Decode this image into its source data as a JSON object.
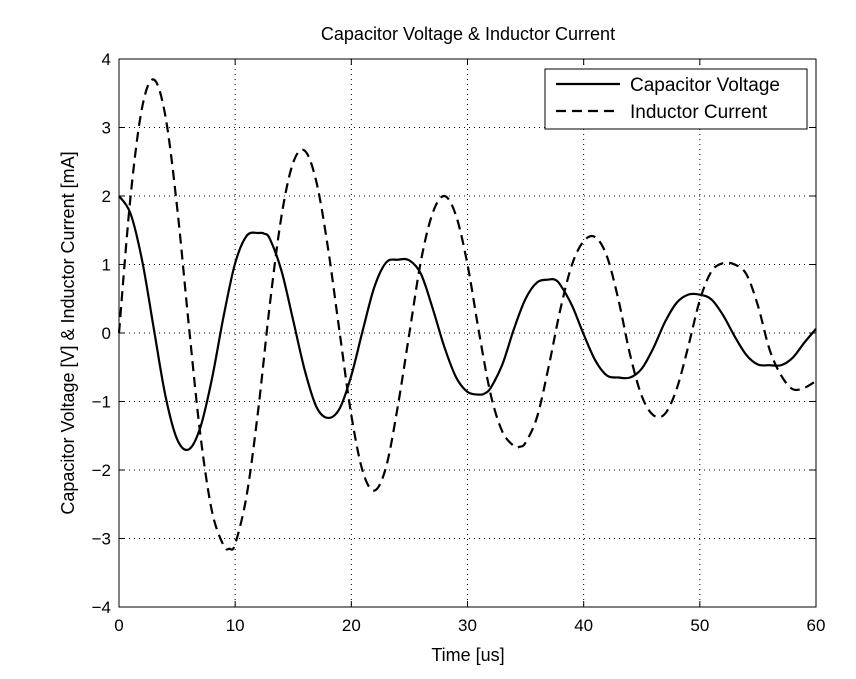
{
  "chart_data": {
    "type": "line",
    "title": "Capacitor Voltage & Inductor Current",
    "xlabel": "Time  [us]",
    "ylabel": "Capacitor Voltage  [V]  &  Inductor Current  [mA]",
    "xlim": [
      0,
      60
    ],
    "ylim": [
      -4,
      4
    ],
    "xticks": [
      0,
      10,
      20,
      30,
      40,
      50,
      60
    ],
    "yticks": [
      -4,
      -3,
      -2,
      -1,
      0,
      1,
      2,
      3,
      4
    ],
    "xtick_labels": [
      "0",
      "10",
      "20",
      "30",
      "40",
      "50",
      "60"
    ],
    "ytick_labels": [
      "−4",
      "−3",
      "−2",
      "−1",
      "0",
      "1",
      "2",
      "3",
      "4"
    ],
    "grid": true,
    "legend_position": "top-right",
    "series": [
      {
        "name": "Capacitor Voltage",
        "style": "solid",
        "color": "#000000",
        "x": [
          0,
          1,
          2,
          3,
          4,
          5,
          6,
          7,
          8,
          9,
          10,
          11,
          12,
          12.5,
          13,
          14,
          15,
          16,
          17,
          18,
          19,
          20,
          21,
          22,
          23,
          24,
          25,
          26,
          27,
          28,
          29,
          30,
          31,
          31.5,
          32,
          33,
          34,
          35,
          36,
          37,
          37.5,
          38,
          39,
          40,
          41,
          42,
          43,
          44,
          45,
          46,
          47,
          48,
          49,
          50,
          51,
          52,
          53,
          54,
          55,
          56,
          57,
          58,
          59,
          60
        ],
        "y": [
          2.0,
          1.74,
          1.05,
          0.06,
          -0.92,
          -1.55,
          -1.7,
          -1.38,
          -0.67,
          0.24,
          1.02,
          1.42,
          1.46,
          1.45,
          1.37,
          0.9,
          0.18,
          -0.55,
          -1.08,
          -1.24,
          -1.1,
          -0.62,
          0.05,
          0.68,
          1.03,
          1.07,
          1.06,
          0.86,
          0.36,
          -0.2,
          -0.64,
          -0.86,
          -0.9,
          -0.88,
          -0.8,
          -0.46,
          0.06,
          0.5,
          0.74,
          0.78,
          0.78,
          0.7,
          0.4,
          -0.02,
          -0.4,
          -0.62,
          -0.65,
          -0.65,
          -0.52,
          -0.22,
          0.16,
          0.44,
          0.56,
          0.56,
          0.49,
          0.26,
          -0.05,
          -0.32,
          -0.46,
          -0.47,
          -0.47,
          -0.36,
          -0.14,
          0.06
        ]
      },
      {
        "name": "Inductor Current",
        "style": "dashed",
        "color": "#000000",
        "x": [
          0,
          1,
          2,
          3,
          4,
          5,
          6,
          7,
          8,
          9,
          9.5,
          10,
          11,
          12,
          13,
          14,
          15,
          16,
          17,
          18,
          19,
          20,
          21,
          22,
          23,
          24,
          25,
          26,
          27,
          28,
          29,
          30,
          31,
          32,
          33,
          34,
          34.5,
          35,
          36,
          37,
          38,
          39,
          40,
          41,
          42,
          43,
          44,
          45,
          46,
          47,
          48,
          49,
          50,
          51,
          52,
          53,
          54,
          55,
          56,
          57,
          58,
          59,
          60
        ],
        "y": [
          0.0,
          2.0,
          3.3,
          3.7,
          3.16,
          1.84,
          0.13,
          -1.48,
          -2.6,
          -3.1,
          -3.15,
          -3.08,
          -2.36,
          -1.1,
          0.44,
          1.72,
          2.49,
          2.66,
          2.2,
          1.23,
          0.0,
          -1.2,
          -2.03,
          -2.3,
          -1.95,
          -1.07,
          0.0,
          1.06,
          1.75,
          2.0,
          1.72,
          1.0,
          0.0,
          -0.9,
          -1.44,
          -1.65,
          -1.66,
          -1.6,
          -1.22,
          -0.48,
          0.35,
          1.0,
          1.34,
          1.4,
          1.12,
          0.48,
          -0.32,
          -0.92,
          -1.2,
          -1.18,
          -0.82,
          -0.2,
          0.48,
          0.9,
          1.02,
          1.0,
          0.86,
          0.4,
          -0.24,
          -0.62,
          -0.82,
          -0.8,
          -0.7
        ]
      }
    ]
  }
}
